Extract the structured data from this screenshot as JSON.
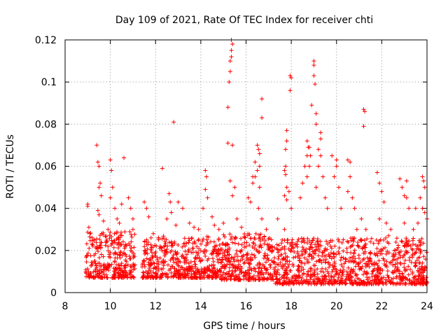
{
  "chart_data": {
    "type": "scatter",
    "title": "Day 109 of 2021, Rate Of TEC Index for receiver chti",
    "xlabel": "GPS time / hours",
    "ylabel": "ROTI / TECUs",
    "xlim": [
      8,
      24
    ],
    "ylim": [
      0,
      0.12
    ],
    "xticks": [
      "8",
      "10",
      "12",
      "14",
      "16",
      "18",
      "20",
      "22",
      "24"
    ],
    "yticks": [
      "0",
      "0.02",
      "0.04",
      "0.06",
      "0.08",
      "0.1",
      "0.12"
    ],
    "grid": true,
    "marker": "+",
    "color": "#ff0000",
    "background_segments": [
      {
        "x0": 8.9,
        "x1": 11.1,
        "base": 0.007,
        "spread": 0.022
      },
      {
        "x0": 11.4,
        "x1": 14.9,
        "base": 0.007,
        "spread": 0.02
      },
      {
        "x0": 14.9,
        "x1": 17.2,
        "base": 0.006,
        "spread": 0.022
      },
      {
        "x0": 17.2,
        "x1": 24.0,
        "base": 0.004,
        "spread": 0.022
      }
    ],
    "series": [
      {
        "name": "ROTI",
        "points": [
          [
            9.0,
            0.041
          ],
          [
            9.0,
            0.042
          ],
          [
            9.05,
            0.031
          ],
          [
            9.1,
            0.028
          ],
          [
            9.2,
            0.026
          ],
          [
            9.4,
            0.07
          ],
          [
            9.45,
            0.062
          ],
          [
            9.5,
            0.06
          ],
          [
            9.55,
            0.052
          ],
          [
            9.5,
            0.05
          ],
          [
            9.6,
            0.046
          ],
          [
            9.45,
            0.039
          ],
          [
            9.5,
            0.037
          ],
          [
            9.7,
            0.034
          ],
          [
            9.9,
            0.03
          ],
          [
            10.0,
            0.063
          ],
          [
            10.05,
            0.058
          ],
          [
            10.1,
            0.05
          ],
          [
            10.0,
            0.045
          ],
          [
            10.2,
            0.04
          ],
          [
            10.3,
            0.035
          ],
          [
            10.4,
            0.033
          ],
          [
            10.5,
            0.042
          ],
          [
            10.6,
            0.064
          ],
          [
            10.8,
            0.045
          ],
          [
            10.9,
            0.04
          ],
          [
            11.0,
            0.035
          ],
          [
            11.0,
            0.03
          ],
          [
            11.5,
            0.043
          ],
          [
            11.6,
            0.04
          ],
          [
            11.7,
            0.036
          ],
          [
            11.9,
            0.028
          ],
          [
            11.8,
            0.026
          ],
          [
            12.3,
            0.059
          ],
          [
            12.5,
            0.035
          ],
          [
            12.6,
            0.047
          ],
          [
            12.65,
            0.043
          ],
          [
            12.7,
            0.038
          ],
          [
            12.8,
            0.081
          ],
          [
            12.9,
            0.032
          ],
          [
            13.0,
            0.043
          ],
          [
            13.2,
            0.04
          ],
          [
            13.5,
            0.033
          ],
          [
            13.7,
            0.031
          ],
          [
            13.9,
            0.03
          ],
          [
            14.1,
            0.04
          ],
          [
            14.2,
            0.058
          ],
          [
            14.25,
            0.055
          ],
          [
            14.2,
            0.049
          ],
          [
            14.3,
            0.045
          ],
          [
            14.5,
            0.036
          ],
          [
            14.6,
            0.032
          ],
          [
            14.8,
            0.03
          ],
          [
            15.0,
            0.033
          ],
          [
            15.2,
            0.088
          ],
          [
            15.25,
            0.1
          ],
          [
            15.3,
            0.105
          ],
          [
            15.3,
            0.11
          ],
          [
            15.35,
            0.112
          ],
          [
            15.35,
            0.115
          ],
          [
            15.4,
            0.118
          ],
          [
            15.35,
            0.12
          ],
          [
            15.2,
            0.071
          ],
          [
            15.4,
            0.07
          ],
          [
            15.3,
            0.053
          ],
          [
            15.4,
            0.046
          ],
          [
            15.5,
            0.05
          ],
          [
            15.6,
            0.035
          ],
          [
            15.8,
            0.031
          ],
          [
            16.1,
            0.045
          ],
          [
            16.2,
            0.043
          ],
          [
            16.3,
            0.055
          ],
          [
            16.3,
            0.052
          ],
          [
            16.4,
            0.062
          ],
          [
            16.5,
            0.07
          ],
          [
            16.55,
            0.068
          ],
          [
            16.6,
            0.066
          ],
          [
            16.6,
            0.06
          ],
          [
            16.5,
            0.058
          ],
          [
            16.4,
            0.055
          ],
          [
            16.6,
            0.05
          ],
          [
            16.7,
            0.092
          ],
          [
            16.7,
            0.083
          ],
          [
            16.55,
            0.04
          ],
          [
            16.7,
            0.035
          ],
          [
            16.9,
            0.03
          ],
          [
            17.4,
            0.035
          ],
          [
            17.6,
            0.025
          ],
          [
            17.7,
            0.058
          ],
          [
            17.75,
            0.06
          ],
          [
            17.75,
            0.056
          ],
          [
            17.8,
            0.05
          ],
          [
            17.7,
            0.046
          ],
          [
            17.8,
            0.044
          ],
          [
            17.7,
            0.03
          ],
          [
            17.8,
            0.077
          ],
          [
            17.8,
            0.072
          ],
          [
            17.75,
            0.068
          ],
          [
            17.95,
            0.103
          ],
          [
            18.0,
            0.102
          ],
          [
            17.95,
            0.096
          ],
          [
            17.9,
            0.048
          ],
          [
            18.0,
            0.04
          ],
          [
            18.4,
            0.045
          ],
          [
            18.5,
            0.052
          ],
          [
            18.6,
            0.06
          ],
          [
            18.7,
            0.065
          ],
          [
            18.75,
            0.069
          ],
          [
            18.7,
            0.072
          ],
          [
            18.8,
            0.069
          ],
          [
            18.85,
            0.065
          ],
          [
            18.8,
            0.06
          ],
          [
            18.7,
            0.055
          ],
          [
            18.9,
            0.089
          ],
          [
            19.0,
            0.103
          ],
          [
            19.0,
            0.108
          ],
          [
            19.0,
            0.11
          ],
          [
            19.05,
            0.099
          ],
          [
            19.1,
            0.085
          ],
          [
            19.1,
            0.08
          ],
          [
            19.3,
            0.076
          ],
          [
            19.3,
            0.073
          ],
          [
            19.2,
            0.068
          ],
          [
            19.3,
            0.065
          ],
          [
            19.2,
            0.06
          ],
          [
            19.4,
            0.055
          ],
          [
            19.1,
            0.05
          ],
          [
            19.5,
            0.045
          ],
          [
            19.6,
            0.04
          ],
          [
            19.8,
            0.065
          ],
          [
            20.0,
            0.063
          ],
          [
            20.0,
            0.06
          ],
          [
            19.9,
            0.055
          ],
          [
            20.1,
            0.05
          ],
          [
            20.2,
            0.04
          ],
          [
            20.5,
            0.063
          ],
          [
            20.6,
            0.062
          ],
          [
            20.6,
            0.055
          ],
          [
            20.5,
            0.048
          ],
          [
            20.7,
            0.045
          ],
          [
            20.8,
            0.04
          ],
          [
            20.9,
            0.03
          ],
          [
            21.1,
            0.035
          ],
          [
            21.2,
            0.087
          ],
          [
            21.25,
            0.086
          ],
          [
            21.2,
            0.079
          ],
          [
            21.3,
            0.03
          ],
          [
            21.8,
            0.057
          ],
          [
            21.9,
            0.052
          ],
          [
            22.0,
            0.048
          ],
          [
            22.1,
            0.043
          ],
          [
            21.9,
            0.035
          ],
          [
            22.2,
            0.033
          ],
          [
            22.4,
            0.03
          ],
          [
            22.3,
            0.027
          ],
          [
            22.8,
            0.054
          ],
          [
            22.9,
            0.05
          ],
          [
            23.0,
            0.046
          ],
          [
            23.1,
            0.053
          ],
          [
            23.1,
            0.045
          ],
          [
            23.2,
            0.04
          ],
          [
            23.0,
            0.033
          ],
          [
            23.4,
            0.03
          ],
          [
            23.5,
            0.04
          ],
          [
            23.6,
            0.033
          ],
          [
            23.7,
            0.045
          ],
          [
            23.8,
            0.055
          ],
          [
            23.85,
            0.053
          ],
          [
            23.9,
            0.05
          ],
          [
            23.8,
            0.04
          ],
          [
            23.9,
            0.038
          ],
          [
            24.0,
            0.035
          ]
        ]
      }
    ]
  }
}
